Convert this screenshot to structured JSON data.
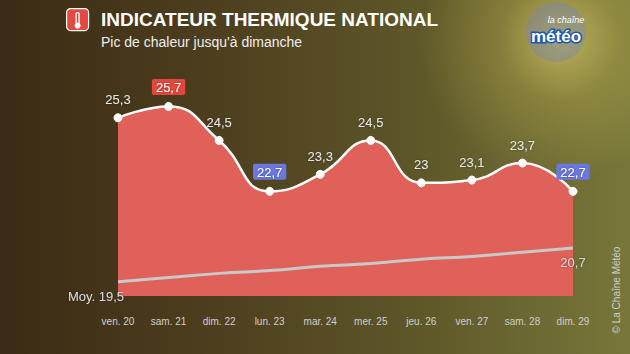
{
  "chart_data": {
    "type": "line",
    "title": "INDICATEUR THERMIQUE NATIONAL",
    "subtitle": "Pic de chaleur jusqu'à dimanche",
    "logo": [
      "la chaîne",
      "météo"
    ],
    "credit": "© La Chaîne Météo",
    "categories": [
      "ven. 20",
      "sam. 21",
      "dim. 22",
      "lun. 23",
      "mar. 24",
      "mer. 25",
      "jeu. 26",
      "ven. 27",
      "sam. 28",
      "dim. 29"
    ],
    "series": [
      {
        "type": "area",
        "color": "#e0605a",
        "values": [
          25.3,
          25.7,
          24.5,
          22.7,
          23.3,
          24.5,
          23,
          23.1,
          23.7,
          22.7
        ],
        "value_labels": [
          "25,3",
          "25,7",
          "24,5",
          "22,7",
          "23,3",
          "24,5",
          "23",
          "23,1",
          "23,7",
          "22,7"
        ]
      },
      {
        "type": "line",
        "color": "#c9c9c9",
        "values": [
          19.5,
          19.65,
          19.8,
          19.9,
          20.05,
          20.15,
          20.3,
          20.4,
          20.55,
          20.7
        ],
        "value_labels": [
          "Moy. 19,5",
          null,
          null,
          null,
          null,
          null,
          null,
          null,
          null,
          "20,7"
        ]
      }
    ],
    "ylim": [
      19,
      26
    ],
    "yticks": [
      19,
      20,
      21,
      22,
      23,
      24,
      25,
      26
    ],
    "grid": false,
    "data_labels": true,
    "tick_labels": "x"
  }
}
